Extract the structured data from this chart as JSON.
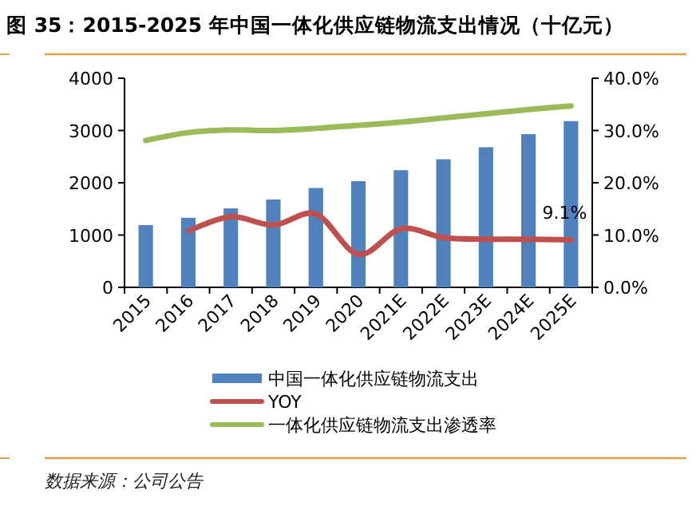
{
  "chart_data": {
    "type": "bar",
    "title": "图 35：2015-2025 年中国一体化供应链物流支出情况（十亿元）",
    "categories": [
      "2015",
      "2016",
      "2017",
      "2018",
      "2019",
      "2020",
      "2021E",
      "2022E",
      "2023E",
      "2024E",
      "2025E"
    ],
    "series": [
      {
        "name": "中国一体化供应链物流支出",
        "color": "#4f81bd",
        "values": [
          1190,
          1330,
          1510,
          1680,
          1900,
          2030,
          2240,
          2450,
          2680,
          2930,
          3180
        ]
      },
      {
        "name": "YOY",
        "type": "line",
        "axis": "y2",
        "color": "#c0504d",
        "values": [
          null,
          10.8,
          13.5,
          11.9,
          14.0,
          6.3,
          11.2,
          9.5,
          9.2,
          9.2,
          9.1
        ],
        "value_labels": [
          null,
          null,
          null,
          null,
          null,
          null,
          null,
          null,
          null,
          null,
          "9.1%"
        ]
      },
      {
        "name": "一体化供应链物流支出渗透率",
        "type": "line",
        "axis": "y2",
        "color": "#9bbb59",
        "values": [
          28.1,
          29.6,
          30.1,
          30.0,
          30.4,
          31.0,
          31.6,
          32.4,
          33.2,
          34.0,
          34.7
        ]
      }
    ],
    "ylim": [
      0,
      4000
    ],
    "yticks": [
      0,
      1000,
      2000,
      3000,
      4000
    ],
    "y2lim": [
      0,
      40
    ],
    "y2ticks": [
      {
        "value": 0,
        "label": "0.0%"
      },
      {
        "value": 10,
        "label": "10.0%"
      },
      {
        "value": 20,
        "label": "20.0%"
      },
      {
        "value": 30,
        "label": "30.0%"
      },
      {
        "value": 40,
        "label": "40.0%"
      }
    ],
    "grid": false,
    "legend": "bottom",
    "annotations": [
      "数据来源：公司公告"
    ]
  }
}
